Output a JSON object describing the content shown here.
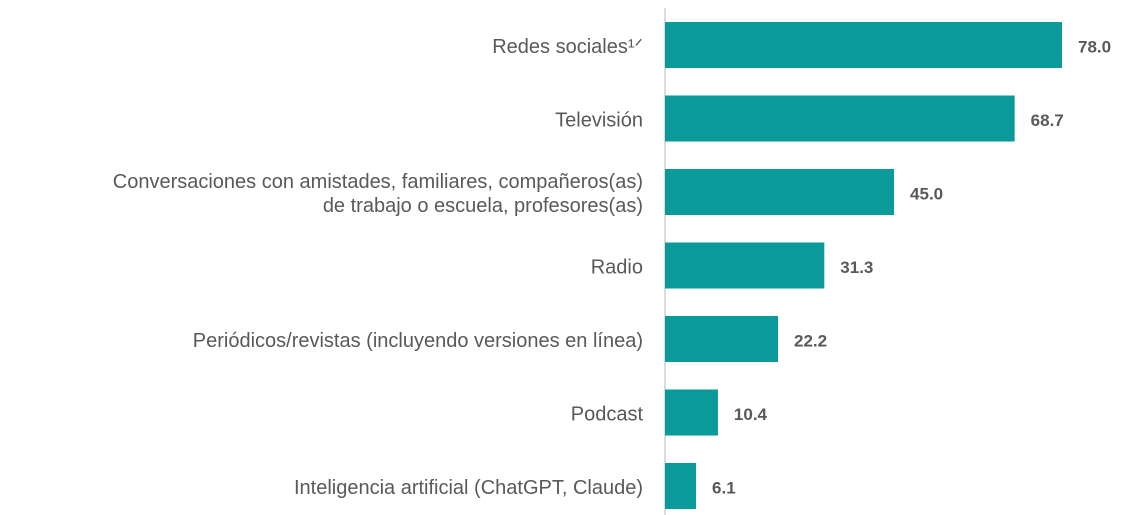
{
  "chart_data": {
    "type": "bar",
    "orientation": "horizontal",
    "categories": [
      "Redes sociales¹ᐟ",
      "Televisión",
      "Conversaciones con amistades, familiares, compañeros(as)\nde trabajo o escuela, profesores(as)",
      "Radio",
      "Periódicos/revistas (incluyendo versiones en línea)",
      "Podcast",
      "Inteligencia artificial (ChatGPT, Claude)"
    ],
    "values": [
      78.0,
      68.7,
      45.0,
      31.3,
      22.2,
      10.4,
      6.1
    ],
    "value_labels": [
      "78.0",
      "68.7",
      "45.0",
      "31.3",
      "22.2",
      "10.4",
      "6.1"
    ],
    "color": "#0a9a9a"
  }
}
